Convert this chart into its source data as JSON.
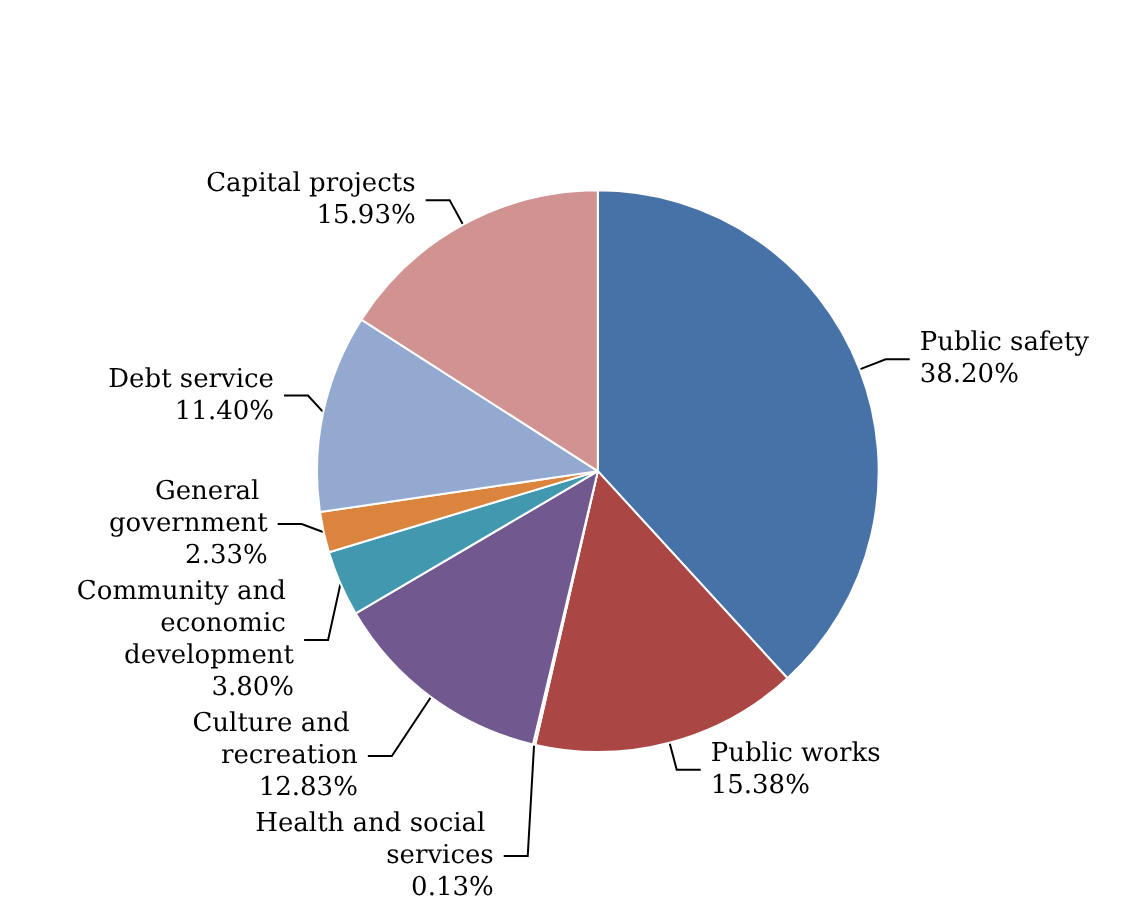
{
  "chart_data": {
    "type": "pie",
    "categories": [
      "Public safety",
      "Public works",
      "Health and social services",
      "Culture and recreation",
      "Community and economic development",
      "General government",
      "Debt service",
      "Capital projects"
    ],
    "values": [
      38.2,
      15.38,
      0.13,
      12.83,
      3.8,
      2.33,
      11.4,
      15.93
    ],
    "value_labels": [
      "38.20%",
      "15.38%",
      "0.13%",
      "12.83%",
      "3.80%",
      "2.33%",
      "11.40%",
      "15.93%"
    ],
    "colors": [
      "#4672a8",
      "#aa4744",
      "#8db352",
      "#71598f",
      "#4198af",
      "#db843d",
      "#93a9d0",
      "#d19392"
    ],
    "legend": false
  }
}
